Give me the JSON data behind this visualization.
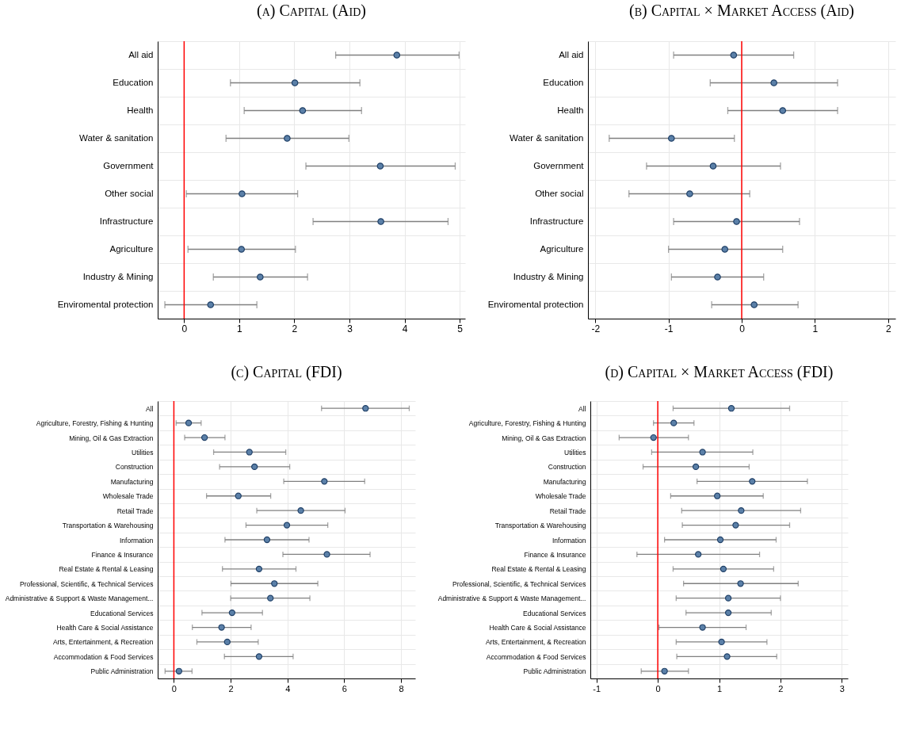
{
  "chart_data": [
    {
      "type": "scatter",
      "title": "(a) Capital (Aid)",
      "orientation": "horizontal",
      "marker": "circle",
      "grid": true,
      "categories": [
        "All aid",
        "Education",
        "Health",
        "Water & sanitation",
        "Government",
        "Other social",
        "Infrastructure",
        "Agriculture",
        "Industry & Mining",
        "Enviromental protection"
      ],
      "series": [
        {
          "color": "#5b80a8",
          "values": [
            3.86,
            2.01,
            2.15,
            1.87,
            3.56,
            1.05,
            3.57,
            1.04,
            1.38,
            0.48
          ],
          "errors": [
            [
              2.75,
              4.99
            ],
            [
              0.84,
              3.19
            ],
            [
              1.09,
              3.22
            ],
            [
              0.76,
              2.99
            ],
            [
              2.21,
              4.92
            ],
            [
              0.04,
              2.06
            ],
            [
              2.34,
              4.79
            ],
            [
              0.07,
              2.02
            ],
            [
              0.53,
              2.24
            ],
            [
              -0.35,
              1.32
            ]
          ]
        }
      ],
      "xlim": [
        -0.48,
        5.1
      ],
      "xticks": [
        0,
        1,
        2,
        3,
        4,
        5
      ],
      "ref_lines": [
        {
          "axis": "x",
          "value": 0,
          "color": "#ff0000"
        }
      ]
    },
    {
      "type": "scatter",
      "title": "(b) Capital × Market Access (Aid)",
      "orientation": "horizontal",
      "marker": "circle",
      "grid": true,
      "categories": [
        "All aid",
        "Education",
        "Health",
        "Water & sanitation",
        "Government",
        "Other social",
        "Infrastructure",
        "Agriculture",
        "Industry & Mining",
        "Enviromental protection"
      ],
      "series": [
        {
          "color": "#5b80a8",
          "values": [
            -0.11,
            0.44,
            0.56,
            -0.96,
            -0.39,
            -0.71,
            -0.07,
            -0.23,
            -0.33,
            0.17
          ],
          "errors": [
            [
              -0.93,
              0.71
            ],
            [
              -0.43,
              1.31
            ],
            [
              -0.19,
              1.31
            ],
            [
              -1.81,
              -0.1
            ],
            [
              -1.3,
              0.53
            ],
            [
              -1.54,
              0.11
            ],
            [
              -0.93,
              0.79
            ],
            [
              -1.0,
              0.56
            ],
            [
              -0.96,
              0.3
            ],
            [
              -0.41,
              0.77
            ]
          ]
        }
      ],
      "xlim": [
        -2.1,
        2.1
      ],
      "xticks": [
        -2,
        -1,
        0,
        1,
        2
      ],
      "ref_lines": [
        {
          "axis": "x",
          "value": 0,
          "color": "#ff0000"
        }
      ]
    },
    {
      "type": "scatter",
      "title": "(c) Capital (FDI)",
      "orientation": "horizontal",
      "marker": "circle",
      "grid": true,
      "categories": [
        "All",
        "Agriculture, Forestry, Fishing & Hunting",
        "Mining, Oil & Gas Extraction",
        "Utilities",
        "Construction",
        "Manufacturing",
        "Wholesale Trade",
        "Retail Trade",
        "Transportation & Warehousing",
        "Information",
        "Finance & Insurance",
        "Real Estate & Rental & Leasing",
        "Professional, Scientific, & Technical Services",
        "Administrative & Support & Waste Management...",
        "Educational Services",
        "Health Care & Social Assistance",
        "Arts, Entertainment, & Recreation",
        "Accommodation & Food Services",
        "Public Administration"
      ],
      "series": [
        {
          "color": "#5b80a8",
          "values": [
            6.75,
            0.52,
            1.08,
            2.66,
            2.84,
            5.3,
            2.27,
            4.47,
            3.98,
            3.28,
            5.39,
            3.0,
            3.54,
            3.4,
            2.05,
            1.68,
            1.88,
            3.0,
            0.18
          ],
          "errors": [
            [
              5.2,
              8.29
            ],
            [
              0.08,
              0.96
            ],
            [
              0.38,
              1.8
            ],
            [
              1.4,
              3.94
            ],
            [
              1.61,
              4.08
            ],
            [
              3.87,
              6.72
            ],
            [
              1.15,
              3.41
            ],
            [
              2.92,
              6.03
            ],
            [
              2.54,
              5.42
            ],
            [
              1.8,
              4.76
            ],
            [
              3.84,
              6.91
            ],
            [
              1.71,
              4.3
            ],
            [
              2.01,
              5.07
            ],
            [
              2.0,
              4.79
            ],
            [
              0.99,
              3.12
            ],
            [
              0.65,
              2.72
            ],
            [
              0.81,
              2.97
            ],
            [
              1.78,
              4.2
            ],
            [
              -0.31,
              0.64
            ]
          ]
        }
      ],
      "xlim": [
        -0.57,
        8.5
      ],
      "xticks": [
        0,
        2,
        4,
        6,
        8
      ],
      "ref_lines": [
        {
          "axis": "x",
          "value": 0,
          "color": "#ff0000"
        }
      ]
    },
    {
      "type": "scatter",
      "title": "(d) Capital × Market Access (FDI)",
      "orientation": "horizontal",
      "marker": "circle",
      "grid": true,
      "categories": [
        "All",
        "Agriculture, Forestry, Fishing & Hunting",
        "Mining, Oil & Gas Extraction",
        "Utilities",
        "Construction",
        "Manufacturing",
        "Wholesale Trade",
        "Retail Trade",
        "Transportation & Warehousing",
        "Information",
        "Finance & Insurance",
        "Real Estate & Rental & Leasing",
        "Professional, Scientific, & Technical Services",
        "Administrative & Support & Waste Management...",
        "Educational Services",
        "Health Care & Social Assistance",
        "Arts, Entertainment, & Recreation",
        "Accommodation & Food Services",
        "Public Administration"
      ],
      "series": [
        {
          "color": "#5b80a8",
          "values": [
            1.2,
            0.26,
            -0.07,
            0.73,
            0.62,
            1.54,
            0.97,
            1.36,
            1.27,
            1.02,
            0.66,
            1.07,
            1.35,
            1.15,
            1.15,
            0.73,
            1.04,
            1.13,
            0.11
          ],
          "errors": [
            [
              0.25,
              2.15
            ],
            [
              -0.07,
              0.59
            ],
            [
              -0.63,
              0.5
            ],
            [
              -0.1,
              1.55
            ],
            [
              -0.24,
              1.49
            ],
            [
              0.64,
              2.44
            ],
            [
              0.21,
              1.72
            ],
            [
              0.39,
              2.33
            ],
            [
              0.4,
              2.15
            ],
            [
              0.11,
              1.93
            ],
            [
              -0.34,
              1.66
            ],
            [
              0.25,
              1.89
            ],
            [
              0.42,
              2.29
            ],
            [
              0.3,
              2.0
            ],
            [
              0.46,
              1.85
            ],
            [
              0.02,
              1.44
            ],
            [
              0.3,
              1.78
            ],
            [
              0.31,
              1.94
            ],
            [
              -0.27,
              0.5
            ]
          ]
        }
      ],
      "xlim": [
        -1.1,
        3.1
      ],
      "xticks": [
        -1,
        0,
        1,
        2,
        3
      ],
      "ref_lines": [
        {
          "axis": "x",
          "value": 0,
          "color": "#ff0000"
        }
      ]
    }
  ]
}
